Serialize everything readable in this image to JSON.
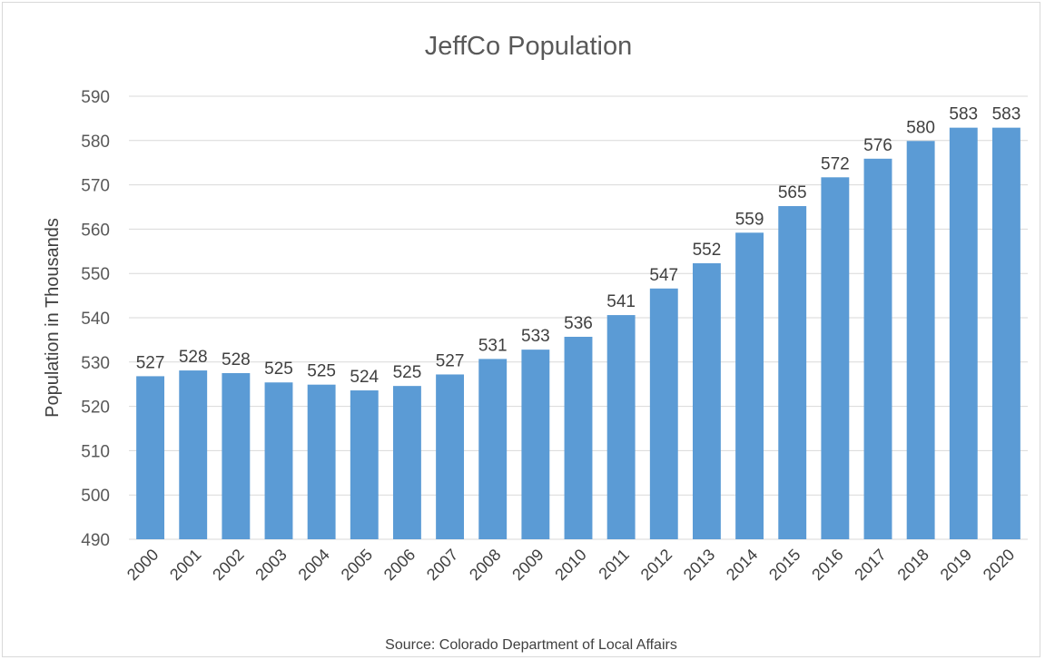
{
  "chart_data": {
    "type": "bar",
    "title": "JeffCo Population",
    "ylabel": "Population in Thousands",
    "xlabel": "",
    "source": "Source: Colorado Department of Local Affairs",
    "ylim": [
      490,
      590
    ],
    "yticks": [
      490,
      500,
      510,
      520,
      530,
      540,
      550,
      560,
      570,
      580,
      590
    ],
    "grid": true,
    "legend": "none",
    "bar_color": "#5b9bd5",
    "categories": [
      "2000",
      "2001",
      "2002",
      "2003",
      "2004",
      "2005",
      "2006",
      "2007",
      "2008",
      "2009",
      "2010",
      "2011",
      "2012",
      "2013",
      "2014",
      "2015",
      "2016",
      "2017",
      "2018",
      "2019",
      "2020"
    ],
    "values": [
      526.8,
      528.1,
      527.5,
      525.4,
      524.9,
      523.6,
      524.6,
      527.2,
      530.7,
      532.8,
      535.7,
      540.6,
      546.6,
      552.3,
      559.2,
      565.2,
      571.7,
      575.9,
      579.9,
      582.9,
      582.9
    ],
    "data_labels": [
      "527",
      "528",
      "528",
      "525",
      "525",
      "524",
      "525",
      "527",
      "531",
      "533",
      "536",
      "541",
      "547",
      "552",
      "559",
      "565",
      "572",
      "576",
      "580",
      "583",
      "583"
    ]
  }
}
